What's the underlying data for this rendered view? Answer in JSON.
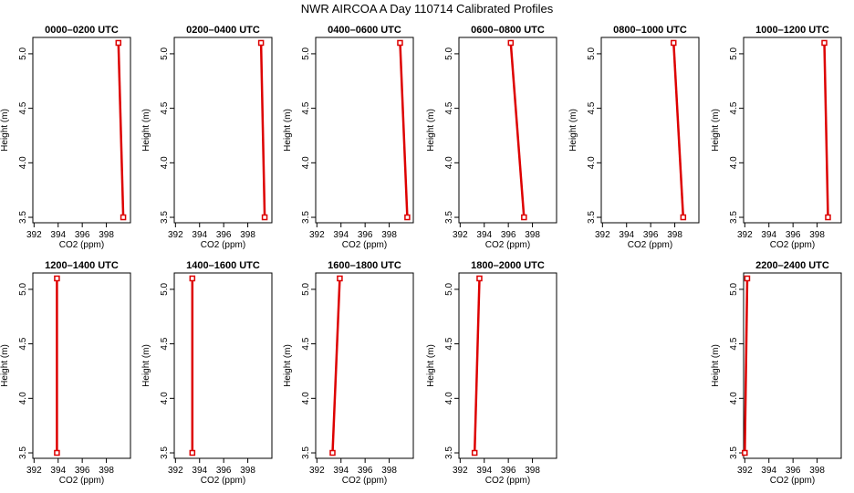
{
  "title": "NWR AIRCOA A  Day 110714  Calibrated Profiles",
  "colors": {
    "line": "#dd0000",
    "marker": "#dd0000",
    "axis": "#000000",
    "frame": "#000000"
  },
  "chart_data": [
    {
      "type": "line",
      "title": "0000–0200 UTC",
      "xlabel": "CO2 (ppm)",
      "ylabel": "Height (m)",
      "xlim": [
        391.9,
        400.0
      ],
      "ylim": [
        3.45,
        5.15
      ],
      "xticks": [
        "392",
        "394",
        "396",
        "398"
      ],
      "yticks": [
        "3.5",
        "4.0",
        "4.5",
        "5.0"
      ],
      "series": [
        {
          "x": [
            399.0,
            399.4
          ],
          "y": [
            5.1,
            3.5
          ]
        }
      ]
    },
    {
      "type": "line",
      "title": "0200–0400 UTC",
      "xlabel": "CO2 (ppm)",
      "ylabel": "Height (m)",
      "xlim": [
        391.9,
        400.0
      ],
      "ylim": [
        3.45,
        5.15
      ],
      "xticks": [
        "392",
        "394",
        "396",
        "398"
      ],
      "yticks": [
        "3.5",
        "4.0",
        "4.5",
        "5.0"
      ],
      "series": [
        {
          "x": [
            399.1,
            399.4
          ],
          "y": [
            5.1,
            3.5
          ]
        }
      ]
    },
    {
      "type": "line",
      "title": "0400–0600 UTC",
      "xlabel": "CO2 (ppm)",
      "ylabel": "Height (m)",
      "xlim": [
        391.9,
        400.0
      ],
      "ylim": [
        3.45,
        5.15
      ],
      "xticks": [
        "392",
        "394",
        "396",
        "398"
      ],
      "yticks": [
        "3.5",
        "4.0",
        "4.5",
        "5.0"
      ],
      "series": [
        {
          "x": [
            398.9,
            399.5
          ],
          "y": [
            5.1,
            3.5
          ]
        }
      ]
    },
    {
      "type": "line",
      "title": "0600–0800 UTC",
      "xlabel": "CO2 (ppm)",
      "ylabel": "Height (m)",
      "xlim": [
        391.9,
        400.0
      ],
      "ylim": [
        3.45,
        5.15
      ],
      "xticks": [
        "392",
        "394",
        "396",
        "398"
      ],
      "yticks": [
        "3.5",
        "4.0",
        "4.5",
        "5.0"
      ],
      "series": [
        {
          "x": [
            396.2,
            397.3
          ],
          "y": [
            5.1,
            3.5
          ]
        }
      ]
    },
    {
      "type": "line",
      "title": "0800–1000 UTC",
      "xlabel": "CO2 (ppm)",
      "ylabel": "Height (m)",
      "xlim": [
        391.9,
        400.0
      ],
      "ylim": [
        3.45,
        5.15
      ],
      "xticks": [
        "392",
        "394",
        "396",
        "398"
      ],
      "yticks": [
        "3.5",
        "4.0",
        "4.5",
        "5.0"
      ],
      "series": [
        {
          "x": [
            397.9,
            398.7
          ],
          "y": [
            5.1,
            3.5
          ]
        }
      ]
    },
    {
      "type": "line",
      "title": "1000–1200 UTC",
      "xlabel": "CO2 (ppm)",
      "ylabel": "Height (m)",
      "xlim": [
        391.9,
        400.0
      ],
      "ylim": [
        3.45,
        5.15
      ],
      "xticks": [
        "392",
        "394",
        "396",
        "398"
      ],
      "yticks": [
        "3.5",
        "4.0",
        "4.5",
        "5.0"
      ],
      "series": [
        {
          "x": [
            398.6,
            398.9
          ],
          "y": [
            5.1,
            3.5
          ]
        }
      ]
    },
    {
      "type": "line",
      "title": "1200–1400 UTC",
      "xlabel": "CO2 (ppm)",
      "ylabel": "Height (m)",
      "xlim": [
        391.9,
        400.0
      ],
      "ylim": [
        3.45,
        5.15
      ],
      "xticks": [
        "392",
        "394",
        "396",
        "398"
      ],
      "yticks": [
        "3.5",
        "4.0",
        "4.5",
        "5.0"
      ],
      "series": [
        {
          "x": [
            393.9,
            393.9
          ],
          "y": [
            5.1,
            3.5
          ]
        }
      ]
    },
    {
      "type": "line",
      "title": "1400–1600 UTC",
      "xlabel": "CO2 (ppm)",
      "ylabel": "Height (m)",
      "xlim": [
        391.9,
        400.0
      ],
      "ylim": [
        3.45,
        5.15
      ],
      "xticks": [
        "392",
        "394",
        "396",
        "398"
      ],
      "yticks": [
        "3.5",
        "4.0",
        "4.5",
        "5.0"
      ],
      "series": [
        {
          "x": [
            393.4,
            393.4
          ],
          "y": [
            5.1,
            3.5
          ]
        }
      ]
    },
    {
      "type": "line",
      "title": "1600–1800 UTC",
      "xlabel": "CO2 (ppm)",
      "ylabel": "Height (m)",
      "xlim": [
        391.9,
        400.0
      ],
      "ylim": [
        3.45,
        5.15
      ],
      "xticks": [
        "392",
        "394",
        "396",
        "398"
      ],
      "yticks": [
        "3.5",
        "4.0",
        "4.5",
        "5.0"
      ],
      "series": [
        {
          "x": [
            393.9,
            393.3
          ],
          "y": [
            5.1,
            3.5
          ]
        }
      ]
    },
    {
      "type": "line",
      "title": "1800–2000 UTC",
      "xlabel": "CO2 (ppm)",
      "ylabel": "Height (m)",
      "xlim": [
        391.9,
        400.0
      ],
      "ylim": [
        3.45,
        5.15
      ],
      "xticks": [
        "392",
        "394",
        "396",
        "398"
      ],
      "yticks": [
        "3.5",
        "4.0",
        "4.5",
        "5.0"
      ],
      "series": [
        {
          "x": [
            393.6,
            393.2
          ],
          "y": [
            5.1,
            3.5
          ]
        }
      ]
    },
    {
      "type": "line",
      "title": "2200–2400 UTC",
      "xlabel": "CO2 (ppm)",
      "ylabel": "Height (m)",
      "xlim": [
        391.9,
        400.0
      ],
      "ylim": [
        3.45,
        5.15
      ],
      "xticks": [
        "392",
        "394",
        "396",
        "398"
      ],
      "yticks": [
        "3.5",
        "4.0",
        "4.5",
        "5.0"
      ],
      "series": [
        {
          "x": [
            392.2,
            392.0
          ],
          "y": [
            5.1,
            3.5
          ]
        }
      ]
    }
  ]
}
